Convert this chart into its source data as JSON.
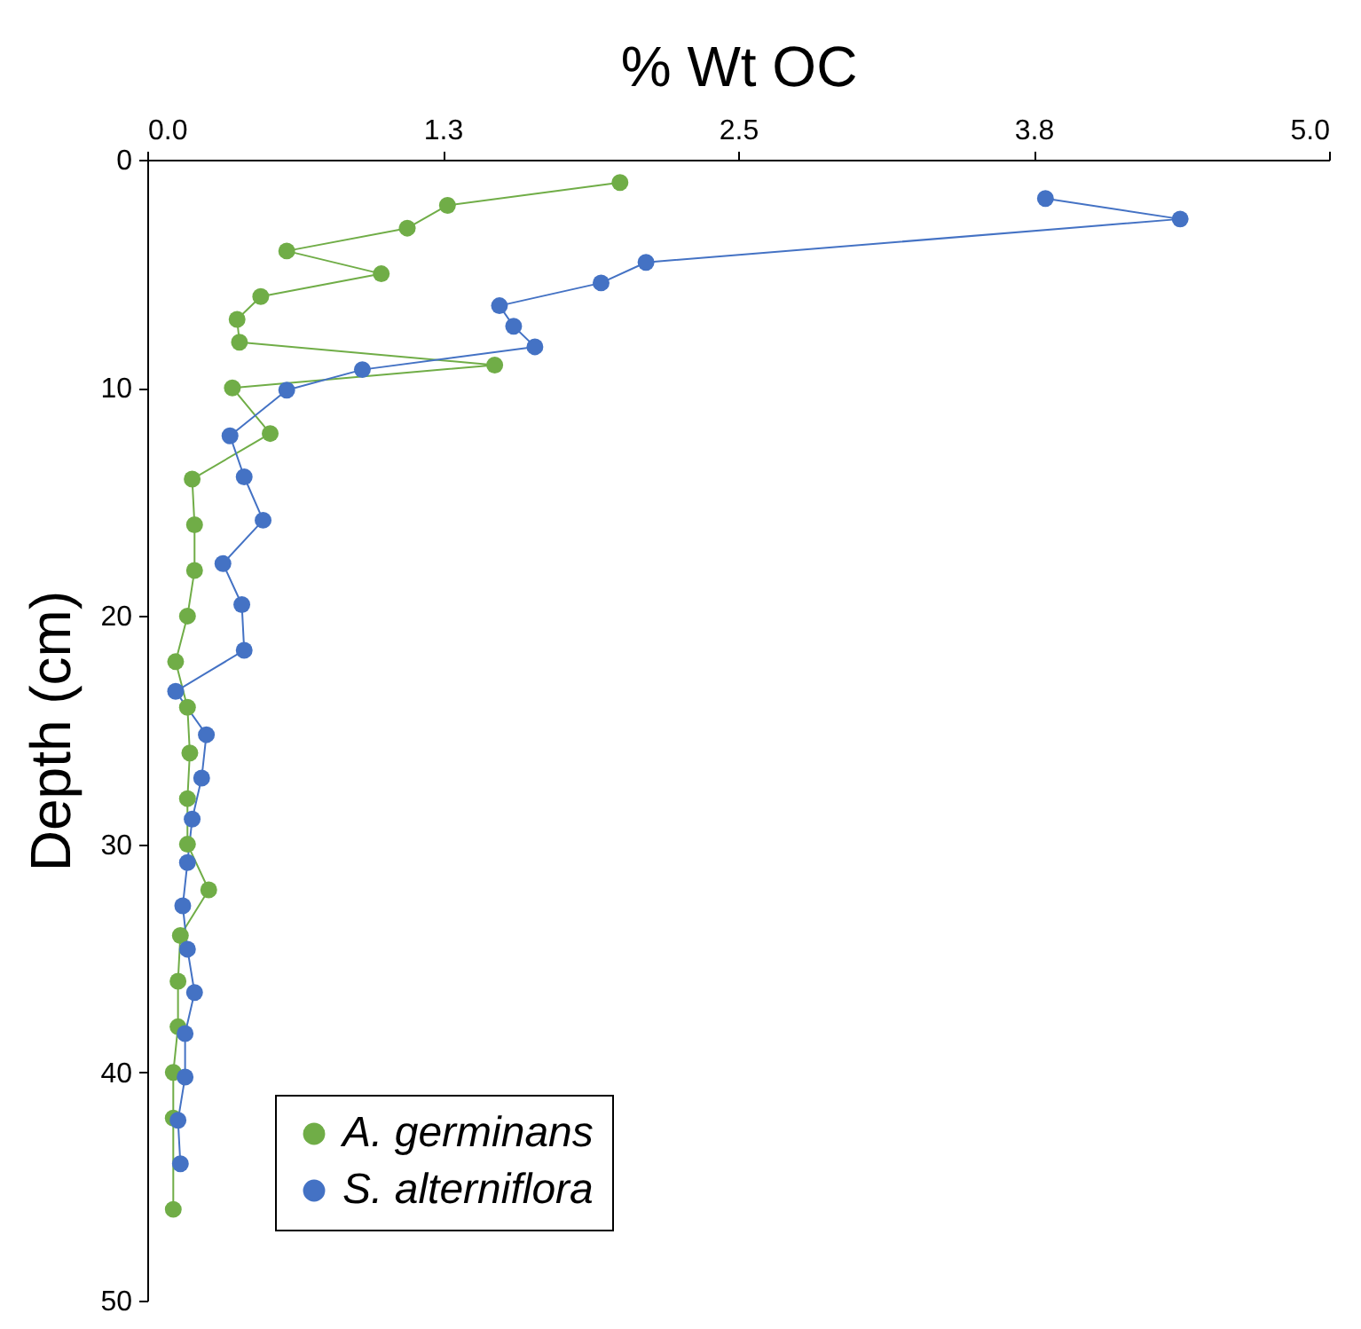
{
  "chart_data": {
    "type": "line",
    "xlabel": "% Wt OC",
    "ylabel": "Depth (cm)",
    "xlim": [
      0,
      5
    ],
    "xticks": [
      {
        "value": 0,
        "label": "0.0"
      },
      {
        "value": 1.25,
        "label": "1.3"
      },
      {
        "value": 2.5,
        "label": "2.5"
      },
      {
        "value": 3.75,
        "label": "3.8"
      },
      {
        "value": 5,
        "label": "5.0"
      }
    ],
    "ylim": [
      50,
      0
    ],
    "yticks": [
      0,
      10,
      20,
      30,
      40,
      50
    ],
    "series": [
      {
        "name": "A. germinans",
        "color": "#70ad47",
        "x": [
          2.0,
          1.27,
          1.1,
          0.59,
          0.99,
          0.48,
          0.38,
          0.39,
          1.47,
          0.36,
          0.52,
          0.19,
          0.2,
          0.2,
          0.17,
          0.12,
          0.17,
          0.18,
          0.17,
          0.17,
          0.26,
          0.14,
          0.13,
          0.13,
          0.11,
          0.11,
          0.11
        ],
        "values": [
          1,
          2,
          3,
          4,
          5,
          6,
          7,
          8,
          9,
          10,
          12,
          14,
          16,
          18,
          20,
          22,
          24,
          26,
          28,
          30,
          32,
          34,
          36,
          38,
          40,
          42,
          46
        ]
      },
      {
        "name": "S. alterniflora",
        "color": "#4472c4",
        "x": [
          3.8,
          4.37,
          2.11,
          1.92,
          1.49,
          1.55,
          1.64,
          0.91,
          0.59,
          0.35,
          0.41,
          0.49,
          0.32,
          0.4,
          0.41,
          0.12,
          0.25,
          0.23,
          0.19,
          0.17,
          0.15,
          0.17,
          0.2,
          0.16,
          0.16,
          0.13,
          0.14
        ],
        "values": [
          1.7,
          2.6,
          4.5,
          5.4,
          6.4,
          7.3,
          8.2,
          9.2,
          10.1,
          12.1,
          13.9,
          15.8,
          17.7,
          19.5,
          21.5,
          23.3,
          25.2,
          27.1,
          28.9,
          30.8,
          32.7,
          34.6,
          36.5,
          38.3,
          40.2,
          42.1,
          44.0
        ]
      }
    ],
    "legend": "bottom left",
    "marker": "circle",
    "line_style": "solid",
    "grid": false
  }
}
